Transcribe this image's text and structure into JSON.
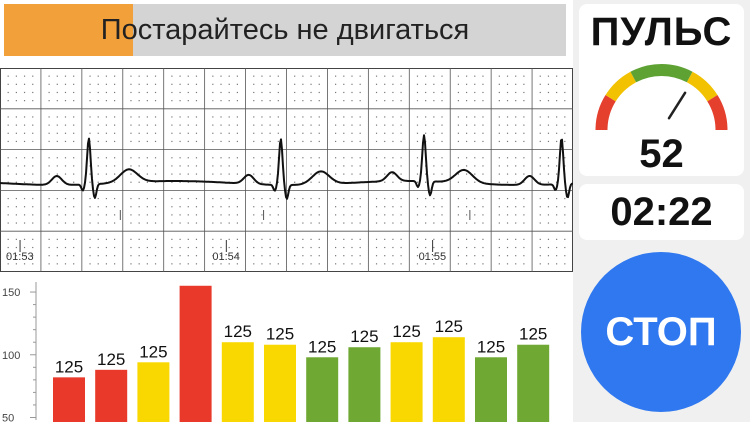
{
  "banner": {
    "message": "Постарайтесь не двигаться",
    "progress": 0.23
  },
  "ecg": {
    "time_labels": [
      "01:53",
      "01:54",
      "01:55"
    ],
    "beat_times": [
      0.155,
      0.49,
      0.74,
      0.98
    ]
  },
  "pulse": {
    "title": "ПУЛЬС",
    "value": "52",
    "gauge_fraction": 0.68
  },
  "timer": {
    "value": "02:22"
  },
  "stop_button": {
    "label": "СТОП"
  },
  "chart_data": {
    "type": "bar",
    "ylim": [
      48,
      158
    ],
    "yticks": [
      50,
      100,
      150
    ],
    "values": [
      82,
      88,
      94,
      155,
      110,
      108,
      98,
      106,
      110,
      114,
      98,
      108
    ],
    "labels": [
      "125",
      "125",
      "125",
      "125",
      "125",
      "125",
      "125",
      "125",
      "125",
      "125",
      "125",
      "125"
    ],
    "colors": [
      "#e8392a",
      "#e8392a",
      "#f8d800",
      "#e8392a",
      "#f8d800",
      "#f8d800",
      "#6fa832",
      "#6fa832",
      "#f8d800",
      "#f8d800",
      "#6fa832",
      "#6fa832"
    ]
  }
}
